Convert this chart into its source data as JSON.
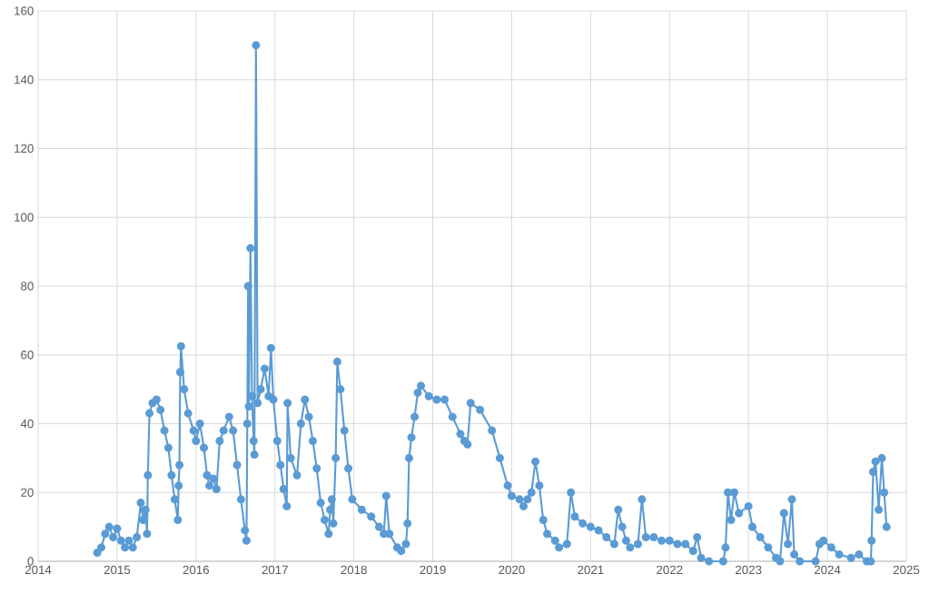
{
  "chart_data": {
    "type": "line",
    "marker": "circle",
    "line_style": "solid",
    "grid": true,
    "xlim": [
      2014,
      2025
    ],
    "ylim": [
      0,
      160
    ],
    "xticks": [
      2014,
      2015,
      2016,
      2017,
      2018,
      2019,
      2020,
      2021,
      2022,
      2023,
      2024,
      2025
    ],
    "yticks": [
      0,
      20,
      40,
      60,
      80,
      100,
      120,
      140,
      160
    ],
    "series": [
      {
        "color": "#5b9bd5",
        "x": [
          2014.75,
          2014.8,
          2014.85,
          2014.9,
          2014.95,
          2015.0,
          2015.05,
          2015.1,
          2015.15,
          2015.2,
          2015.25,
          2015.3,
          2015.33,
          2015.36,
          2015.38,
          2015.39,
          2015.41,
          2015.45,
          2015.5,
          2015.55,
          2015.6,
          2015.65,
          2015.69,
          2015.73,
          2015.77,
          2015.78,
          2015.79,
          2015.8,
          2015.81,
          2015.85,
          2015.9,
          2015.97,
          2016.0,
          2016.05,
          2016.1,
          2016.14,
          2016.17,
          2016.22,
          2016.26,
          2016.3,
          2016.35,
          2016.42,
          2016.47,
          2016.52,
          2016.57,
          2016.62,
          2016.64,
          2016.65,
          2016.66,
          2016.67,
          2016.69,
          2016.71,
          2016.73,
          2016.74,
          2016.76,
          2016.78,
          2016.82,
          2016.87,
          2016.92,
          2016.95,
          2016.98,
          2017.03,
          2017.07,
          2017.11,
          2017.15,
          2017.16,
          2017.2,
          2017.28,
          2017.33,
          2017.38,
          2017.43,
          2017.48,
          2017.53,
          2017.58,
          2017.63,
          2017.68,
          2017.7,
          2017.72,
          2017.74,
          2017.77,
          2017.79,
          2017.83,
          2017.88,
          2017.93,
          2017.98,
          2018.1,
          2018.22,
          2018.32,
          2018.38,
          2018.41,
          2018.45,
          2018.55,
          2018.6,
          2018.66,
          2018.68,
          2018.7,
          2018.73,
          2018.77,
          2018.81,
          2018.85,
          2018.95,
          2019.05,
          2019.15,
          2019.25,
          2019.35,
          2019.4,
          2019.44,
          2019.48,
          2019.6,
          2019.75,
          2019.85,
          2019.95,
          2020.0,
          2020.1,
          2020.15,
          2020.2,
          2020.25,
          2020.3,
          2020.35,
          2020.4,
          2020.45,
          2020.55,
          2020.6,
          2020.7,
          2020.75,
          2020.8,
          2020.9,
          2021.0,
          2021.1,
          2021.2,
          2021.3,
          2021.35,
          2021.4,
          2021.45,
          2021.5,
          2021.6,
          2021.65,
          2021.7,
          2021.8,
          2021.9,
          2022.0,
          2022.1,
          2022.2,
          2022.3,
          2022.35,
          2022.4,
          2022.5,
          2022.68,
          2022.71,
          2022.74,
          2022.78,
          2022.82,
          2022.88,
          2023.0,
          2023.05,
          2023.15,
          2023.25,
          2023.35,
          2023.4,
          2023.45,
          2023.5,
          2023.55,
          2023.58,
          2023.65,
          2023.85,
          2023.9,
          2023.95,
          2024.05,
          2024.15,
          2024.3,
          2024.4,
          2024.5,
          2024.55,
          2024.56,
          2024.58,
          2024.61,
          2024.65,
          2024.69,
          2024.72,
          2024.75
        ],
        "values": [
          2.5,
          4,
          8,
          10,
          7,
          9.5,
          6,
          4,
          6,
          4,
          7,
          17,
          12,
          15,
          8,
          25,
          43,
          46,
          47,
          44,
          38,
          33,
          25,
          18,
          12,
          22,
          28,
          55,
          62.5,
          50,
          43,
          38,
          35,
          40,
          33,
          25,
          22,
          24,
          21,
          35,
          38,
          42,
          38,
          28,
          18,
          9,
          6,
          40,
          80,
          45,
          91,
          48,
          35,
          31,
          150,
          46,
          50,
          56,
          48,
          62,
          47,
          35,
          28,
          21,
          16,
          46,
          30,
          25,
          40,
          47,
          42,
          35,
          27,
          17,
          12,
          8,
          15,
          18,
          11,
          30,
          58,
          50,
          38,
          27,
          18,
          15,
          13,
          10,
          8,
          19,
          8,
          4,
          3,
          5,
          11,
          30,
          36,
          42,
          49,
          51,
          48,
          47,
          47,
          42,
          37,
          35,
          34,
          46,
          44,
          38,
          30,
          22,
          19,
          18,
          16,
          18,
          20,
          29,
          22,
          12,
          8,
          6,
          4,
          5,
          20,
          13,
          11,
          10,
          9,
          7,
          5,
          15,
          10,
          6,
          4,
          5,
          18,
          7,
          7,
          6,
          6,
          5,
          5,
          3,
          7,
          1,
          0,
          0,
          4,
          20,
          12,
          20,
          14,
          16,
          10,
          7,
          4,
          1,
          0,
          14,
          5,
          18,
          2,
          0,
          0,
          5,
          6,
          4,
          2,
          1,
          2,
          0,
          0,
          6,
          26,
          29,
          15,
          30,
          20,
          10
        ]
      }
    ]
  }
}
